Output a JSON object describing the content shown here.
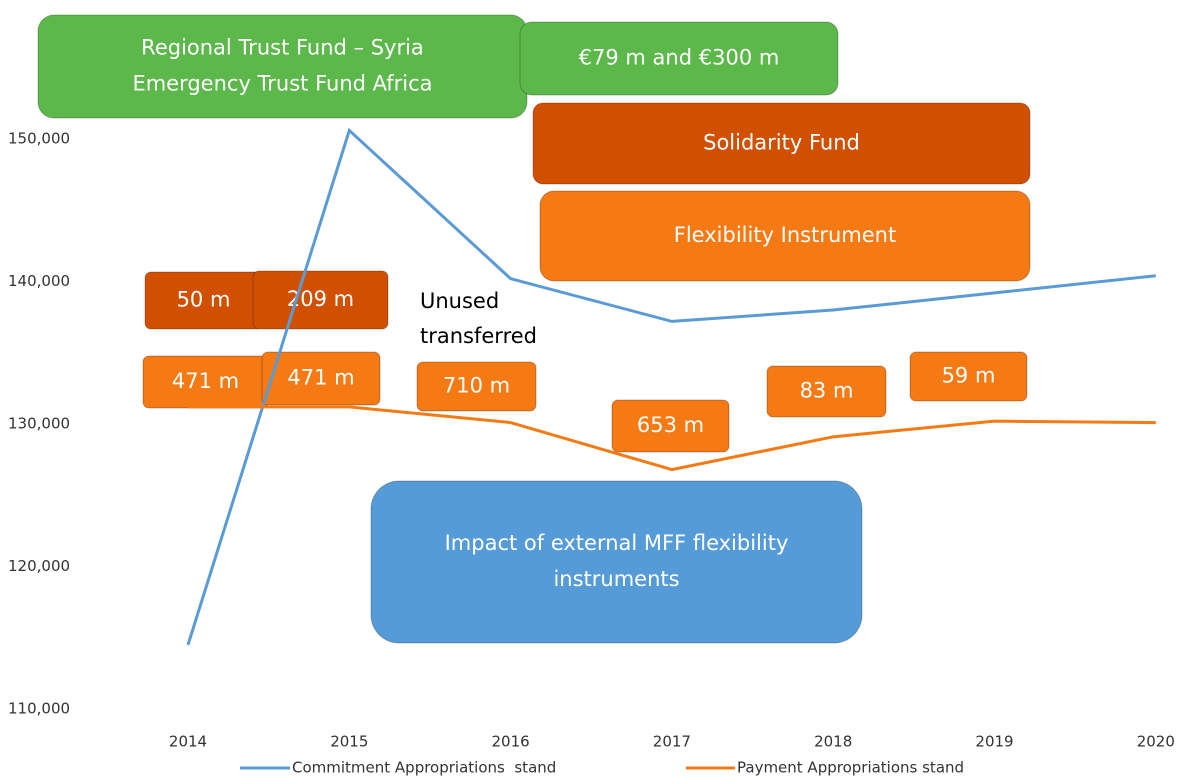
{
  "chart_data": {
    "type": "line",
    "x": [
      "2014",
      "2015",
      "2016",
      "2017",
      "2018",
      "2019",
      "2020"
    ],
    "series": [
      {
        "name": "Commitment Appropriations  stand",
        "color": "#5b9bd5",
        "values": [
          114500,
          150600,
          140200,
          137200,
          138000,
          139200,
          140400
        ]
      },
      {
        "name": "Payment Appropriations stand",
        "color": "#f57a14",
        "values": [
          131200,
          131200,
          130100,
          126800,
          129100,
          130200,
          130100
        ]
      }
    ],
    "ylim": [
      110000,
      160000
    ],
    "yticks": [
      {
        "value": 110000,
        "label": "110,000"
      },
      {
        "value": 120000,
        "label": "120,000"
      },
      {
        "value": 130000,
        "label": "130,000"
      },
      {
        "value": 140000,
        "label": "140,000"
      },
      {
        "value": 150000,
        "label": "150,000"
      }
    ],
    "annotations": [
      [
        "Regional Trust Fund – Syria",
        "Emergency Trust Fund Africa"
      ],
      [
        "€79 m and €300 m"
      ],
      [
        "Solidarity Fund"
      ],
      [
        "Flexibility Instrument"
      ],
      [
        "50 m"
      ],
      [
        "209 m"
      ],
      [
        "Unused",
        "transferred"
      ],
      [
        "471 m"
      ],
      [
        "471 m"
      ],
      [
        "710 m"
      ],
      [
        "653 m"
      ],
      [
        "83 m"
      ],
      [
        "59 m"
      ],
      [
        "Impact of external MFF flexibility",
        "instruments"
      ]
    ]
  }
}
